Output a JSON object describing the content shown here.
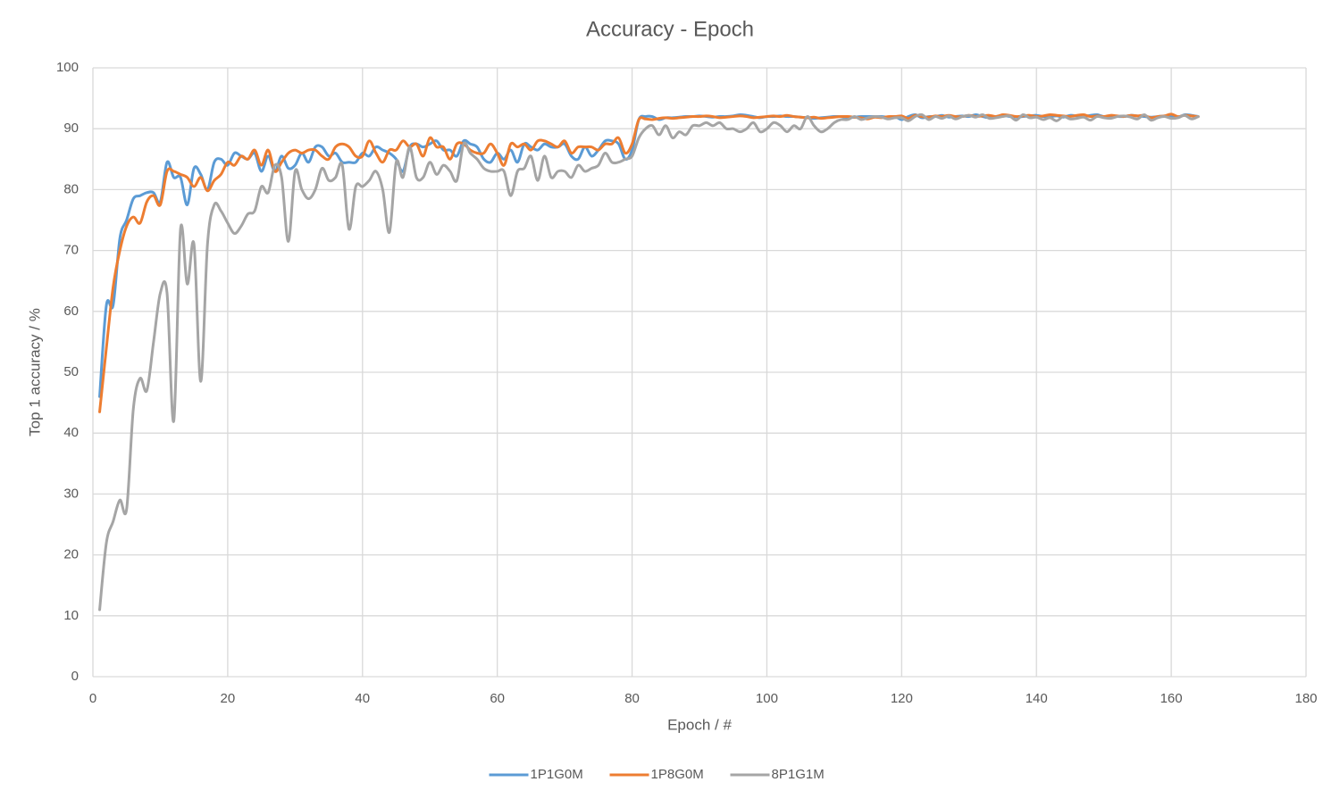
{
  "chart_data": {
    "type": "line",
    "title": "Accuracy - Epoch",
    "x_label": "Epoch / #",
    "y_label": "Top 1 accuracy / %",
    "xlim": [
      0,
      180
    ],
    "xticks": [
      0,
      20,
      40,
      60,
      80,
      100,
      120,
      140,
      160,
      180
    ],
    "ylim": [
      0,
      100
    ],
    "yticks": [
      0,
      10,
      20,
      30,
      40,
      50,
      60,
      70,
      80,
      90,
      100
    ],
    "grid": true,
    "legend": "bottom",
    "smooth": true,
    "x": [
      1,
      2,
      3,
      4,
      5,
      6,
      7,
      8,
      9,
      10,
      11,
      12,
      13,
      14,
      15,
      16,
      17,
      18,
      19,
      20,
      21,
      22,
      23,
      24,
      25,
      26,
      27,
      28,
      29,
      30,
      31,
      32,
      33,
      34,
      35,
      36,
      37,
      38,
      39,
      40,
      41,
      42,
      43,
      44,
      45,
      46,
      47,
      48,
      49,
      50,
      51,
      52,
      53,
      54,
      55,
      56,
      57,
      58,
      59,
      60,
      61,
      62,
      63,
      64,
      65,
      66,
      67,
      68,
      69,
      70,
      71,
      72,
      73,
      74,
      75,
      76,
      77,
      78,
      79,
      80,
      81,
      82,
      83,
      84,
      85,
      86,
      87,
      88,
      89,
      90,
      91,
      92,
      93,
      94,
      95,
      96,
      97,
      98,
      99,
      100,
      101,
      102,
      103,
      104,
      105,
      106,
      107,
      108,
      109,
      110,
      111,
      112,
      113,
      114,
      115,
      116,
      117,
      118,
      119,
      120,
      121,
      122,
      123,
      124,
      125,
      126,
      127,
      128,
      129,
      130,
      131,
      132,
      133,
      134,
      135,
      136,
      137,
      138,
      139,
      140,
      141,
      142,
      143,
      144,
      145,
      146,
      147,
      148,
      149,
      150,
      151,
      152,
      153,
      154,
      155,
      156,
      157,
      158,
      159,
      160,
      161,
      162,
      163,
      164
    ],
    "series": [
      {
        "name": "1P1G0M",
        "color": "#5b9bd5",
        "values": [
          46,
          61,
          61,
          72,
          75,
          78.5,
          79,
          79.5,
          79.5,
          78,
          84.5,
          82,
          82,
          77.5,
          83.5,
          82.5,
          80,
          84.5,
          85,
          84,
          86,
          85.5,
          85,
          86,
          83,
          85.5,
          83,
          85.5,
          83.5,
          84,
          86,
          84.5,
          87,
          87,
          85.5,
          86,
          84.5,
          84.5,
          84.5,
          86,
          85.5,
          87,
          86.5,
          86,
          85,
          83,
          87,
          87.5,
          87,
          87.5,
          88,
          86.5,
          86.5,
          85.5,
          88,
          87.5,
          87,
          85,
          84.5,
          86,
          85,
          86.5,
          84.5,
          87.5,
          87,
          86.5,
          87.5,
          87,
          87,
          87.5,
          85.5,
          85,
          87,
          85.5,
          86.5,
          88,
          88,
          87.5,
          85,
          86.5,
          91.5,
          92,
          92,
          91.5,
          91.8,
          91.8,
          91.9,
          92,
          92,
          92.1,
          92,
          91.9,
          92,
          92,
          92.1,
          92.3,
          92.2,
          92,
          91.8,
          92,
          92,
          92.1,
          92,
          92,
          91.9,
          91.8,
          91.7,
          91.8,
          91.9,
          92,
          92,
          91.8,
          91.9,
          92,
          92,
          92,
          92,
          91.9,
          92,
          91.5,
          92,
          92.3,
          91.8,
          92,
          92,
          92.2,
          91.9,
          92,
          92.1,
          92,
          92.3,
          92,
          91.8,
          92,
          92.2,
          92,
          91.9,
          92,
          92.1,
          92.2,
          92,
          92,
          92.1,
          91.9,
          92.2,
          92.1,
          92,
          92.2,
          92.3,
          92,
          92.1,
          92,
          92,
          92.2,
          92.1,
          92,
          91.9,
          92,
          92.1,
          92,
          91.9,
          92.3,
          92.2,
          92
        ]
      },
      {
        "name": "1P8G0M",
        "color": "#ed7d31",
        "values": [
          43.5,
          54,
          64,
          70,
          74,
          75.5,
          74.5,
          78,
          79,
          77.5,
          83,
          83,
          82.5,
          82,
          80.5,
          82,
          79.8,
          81.5,
          82.5,
          84.5,
          84,
          85.5,
          85,
          86.5,
          84,
          86.5,
          83,
          84.5,
          86,
          86.5,
          86,
          86.5,
          86.5,
          85.5,
          85,
          87,
          87.5,
          87,
          85.5,
          85.5,
          88,
          86,
          84.5,
          86.5,
          86.5,
          88,
          87,
          87.5,
          85.5,
          88.5,
          87,
          87,
          85,
          87.5,
          87.5,
          86.5,
          86,
          86,
          87.5,
          86,
          84,
          87.5,
          87,
          87.5,
          86.5,
          88,
          88,
          87.5,
          87,
          88,
          86,
          87,
          87,
          87,
          86.5,
          87.5,
          87.5,
          88.5,
          86,
          87.5,
          91.5,
          91.6,
          91.5,
          91.7,
          91.8,
          91.7,
          91.8,
          91.9,
          92,
          92,
          92.1,
          92,
          91.8,
          91.9,
          92,
          92.1,
          92,
          91.8,
          91.9,
          92,
          92.1,
          92,
          92.2,
          92,
          91.9,
          91.8,
          91.9,
          91.7,
          91.8,
          91.9,
          92,
          92,
          91.9,
          91.8,
          91.6,
          91.9,
          91.8,
          92,
          92,
          92.1,
          91.7,
          92.2,
          92,
          91.9,
          92.1,
          92,
          92.2,
          92,
          92,
          92.2,
          92,
          92.1,
          92.2,
          92,
          92.3,
          92.2,
          92,
          92.1,
          92.2,
          92,
          92.1,
          92.3,
          92.2,
          92.1,
          92,
          92.2,
          92.3,
          92,
          92.1,
          92,
          92.2,
          92.1,
          92,
          92.2,
          92.1,
          92.2,
          91.8,
          92,
          92.1,
          92.4,
          92,
          92.2,
          92.1,
          92
        ]
      },
      {
        "name": "8P1G1M",
        "color": "#a5a5a5",
        "values": [
          11,
          22,
          25.5,
          29,
          27.5,
          44,
          49,
          47,
          55,
          63,
          63,
          42,
          73.5,
          64.5,
          71,
          48.5,
          71,
          77.5,
          76.5,
          74.5,
          72.8,
          74,
          76,
          76.5,
          80.5,
          79.5,
          84,
          82,
          71.5,
          83,
          80,
          78.5,
          80,
          83.5,
          81.5,
          82,
          84,
          73.5,
          80.5,
          80.5,
          81.5,
          83,
          80,
          73,
          84.5,
          82,
          87,
          82,
          82,
          84.5,
          82.5,
          84,
          83,
          81.5,
          87.5,
          86,
          85,
          83.5,
          83,
          83,
          83,
          79,
          83,
          83.5,
          85.5,
          81.5,
          85.5,
          82,
          83,
          83,
          82,
          84,
          83,
          83.5,
          84,
          86,
          84.5,
          84.5,
          85,
          85.5,
          88.5,
          90,
          90.5,
          89,
          90.5,
          88.5,
          89.5,
          89,
          90.5,
          90.5,
          91,
          90.5,
          91,
          90,
          90,
          89.5,
          90,
          91,
          89.5,
          90,
          91,
          90.5,
          89.5,
          90.5,
          90,
          92,
          90.5,
          89.5,
          90,
          91,
          91.5,
          91.5,
          92,
          91.5,
          91.8,
          92,
          91.9,
          91.6,
          91.8,
          91.8,
          91.3,
          92,
          92.3,
          91.5,
          92,
          91.7,
          92.1,
          91.6,
          92,
          92.2,
          91.9,
          92.3,
          91.7,
          91.8,
          92,
          92.1,
          91.4,
          92.3,
          91.8,
          91.9,
          91.5,
          91.8,
          91.3,
          92,
          91.6,
          91.7,
          91.9,
          91.4,
          92,
          91.8,
          91.7,
          92,
          92.1,
          91.9,
          91.6,
          92.3,
          91.4,
          91.8,
          92,
          91.7,
          91.8,
          92.2,
          91.6,
          92
        ]
      }
    ]
  }
}
